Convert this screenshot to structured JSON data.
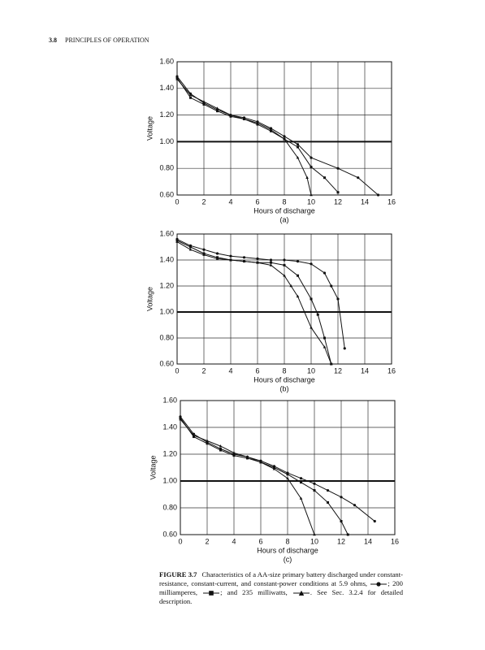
{
  "header": {
    "section": "3.8",
    "title": "PRINCIPLES OF OPERATION"
  },
  "caption": {
    "label": "FIGURE 3.7",
    "part1": "Characteristics of a AA-size primary battery discharged under constant-resistance, constant-current, and constant-power conditions at 5.9 ohms,",
    "part2": "; 200 milliamperes,",
    "part3": "; and 235 milliwatts,",
    "part4": ". See Sec. 3.2.4 for detailed description."
  },
  "chart_data": [
    {
      "type": "line",
      "subtitle": "(a)",
      "xlabel": "Hours of discharge",
      "ylabel": "Voltage",
      "xlim": [
        0,
        16
      ],
      "ylim": [
        0.6,
        1.6
      ],
      "xticks": [
        0,
        2,
        4,
        6,
        8,
        10,
        12,
        14,
        16
      ],
      "yticks": [
        {
          "value": 0.6,
          "label": "0.60"
        },
        {
          "value": 0.8,
          "label": "0.80"
        },
        {
          "value": 1.0,
          "label": "1.00"
        },
        {
          "value": 1.2,
          "label": "1.20"
        },
        {
          "value": 1.4,
          "label": "1.40"
        },
        {
          "value": 1.6,
          "label": "1.60"
        }
      ],
      "grid": true,
      "reference_y": 1.0,
      "series": [
        {
          "marker": "circle",
          "color": "#111",
          "x": [
            0,
            1,
            2,
            3,
            4,
            5,
            6,
            7,
            8,
            9,
            10,
            12,
            13.5,
            15
          ],
          "values": [
            1.49,
            1.36,
            1.29,
            1.24,
            1.2,
            1.18,
            1.15,
            1.1,
            1.04,
            0.98,
            0.88,
            0.8,
            0.73,
            0.6
          ]
        },
        {
          "marker": "square",
          "color": "#111",
          "x": [
            0,
            1,
            2,
            3,
            4,
            5,
            6,
            7,
            8,
            9,
            10,
            11,
            12
          ],
          "values": [
            1.48,
            1.33,
            1.28,
            1.23,
            1.19,
            1.17,
            1.13,
            1.08,
            1.02,
            0.96,
            0.81,
            0.73,
            0.62
          ]
        },
        {
          "marker": "triangle",
          "color": "#111",
          "x": [
            0,
            1,
            2,
            3,
            4,
            5,
            6,
            7,
            8,
            9,
            9.7,
            10
          ],
          "values": [
            1.47,
            1.35,
            1.3,
            1.25,
            1.2,
            1.17,
            1.14,
            1.09,
            1.02,
            0.88,
            0.73,
            0.6
          ]
        }
      ]
    },
    {
      "type": "line",
      "subtitle": "(b)",
      "xlabel": "Hours of discharge",
      "ylabel": "Voltage",
      "xlim": [
        0,
        16
      ],
      "ylim": [
        0.6,
        1.6
      ],
      "xticks": [
        0,
        2,
        4,
        6,
        8,
        10,
        12,
        14,
        16
      ],
      "yticks": [
        {
          "value": 0.6,
          "label": "0.60"
        },
        {
          "value": 0.8,
          "label": "0.80"
        },
        {
          "value": 1.0,
          "label": "1.00"
        },
        {
          "value": 1.2,
          "label": "1.20"
        },
        {
          "value": 1.4,
          "label": "1.40"
        },
        {
          "value": 1.6,
          "label": "1.60"
        }
      ],
      "grid": true,
      "reference_y": 1.0,
      "series": [
        {
          "marker": "circle",
          "color": "#111",
          "x": [
            0,
            1,
            2,
            3,
            4,
            5,
            6,
            7,
            8,
            9,
            10,
            11,
            11.5,
            12,
            12.5
          ],
          "values": [
            1.56,
            1.51,
            1.48,
            1.45,
            1.43,
            1.42,
            1.41,
            1.4,
            1.4,
            1.39,
            1.37,
            1.3,
            1.2,
            1.1,
            0.72
          ]
        },
        {
          "marker": "square",
          "color": "#111",
          "x": [
            0,
            1,
            2,
            3,
            4,
            5,
            6,
            7,
            8,
            9,
            10,
            10.5,
            11,
            11.5
          ],
          "values": [
            1.55,
            1.5,
            1.45,
            1.42,
            1.4,
            1.39,
            1.38,
            1.38,
            1.36,
            1.28,
            1.1,
            0.98,
            0.8,
            0.6
          ]
        },
        {
          "marker": "triangle",
          "color": "#111",
          "x": [
            0,
            1,
            2,
            3,
            4,
            5,
            6,
            7,
            8,
            8.5,
            9,
            10,
            11,
            11.5
          ],
          "values": [
            1.54,
            1.48,
            1.44,
            1.41,
            1.4,
            1.39,
            1.38,
            1.36,
            1.28,
            1.2,
            1.12,
            0.88,
            0.73,
            0.6
          ]
        }
      ]
    },
    {
      "type": "line",
      "subtitle": "(c)",
      "xlabel": "Hours of discharge",
      "ylabel": "Voltage",
      "xlim": [
        0,
        16
      ],
      "ylim": [
        0.6,
        1.6
      ],
      "xticks": [
        0,
        2,
        4,
        6,
        8,
        10,
        12,
        14,
        16
      ],
      "yticks": [
        {
          "value": 0.6,
          "label": "0.60"
        },
        {
          "value": 0.8,
          "label": "0.80"
        },
        {
          "value": 1.0,
          "label": "1.00"
        },
        {
          "value": 1.2,
          "label": "1.20"
        },
        {
          "value": 1.4,
          "label": "1.40"
        },
        {
          "value": 1.6,
          "label": "1.60"
        }
      ],
      "grid": true,
      "reference_y": 1.0,
      "series": [
        {
          "marker": "circle",
          "color": "#111",
          "x": [
            0,
            1,
            2,
            3,
            4,
            5,
            6,
            7,
            8,
            9,
            10,
            11,
            12,
            13,
            14.5
          ],
          "values": [
            1.48,
            1.35,
            1.29,
            1.24,
            1.2,
            1.18,
            1.15,
            1.11,
            1.06,
            1.02,
            0.98,
            0.93,
            0.88,
            0.82,
            0.7
          ]
        },
        {
          "marker": "square",
          "color": "#111",
          "x": [
            0,
            1,
            2,
            3,
            4,
            5,
            6,
            7,
            8,
            9,
            10,
            11,
            12,
            12.5
          ],
          "values": [
            1.47,
            1.33,
            1.28,
            1.23,
            1.19,
            1.17,
            1.14,
            1.1,
            1.05,
            0.99,
            0.93,
            0.84,
            0.7,
            0.6
          ]
        },
        {
          "marker": "triangle",
          "color": "#111",
          "x": [
            0,
            1,
            2,
            3,
            4,
            5,
            6,
            7,
            8,
            9,
            10
          ],
          "values": [
            1.46,
            1.34,
            1.3,
            1.26,
            1.21,
            1.18,
            1.14,
            1.09,
            1.02,
            0.87,
            0.6
          ]
        }
      ]
    }
  ]
}
